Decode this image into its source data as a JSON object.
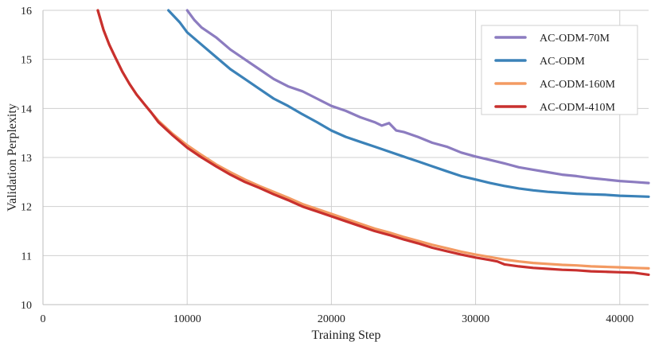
{
  "chart_data": {
    "type": "line",
    "title": "",
    "xlabel": "Training Step",
    "ylabel": "Validation Perplexity",
    "xlim": [
      0,
      42000
    ],
    "ylim": [
      10,
      16
    ],
    "xticks": [
      0,
      10000,
      20000,
      30000,
      40000
    ],
    "xtick_labels": [
      "0",
      "10000",
      "20000",
      "30000",
      "40000"
    ],
    "yticks": [
      10,
      11,
      12,
      13,
      14,
      15,
      16
    ],
    "ytick_labels": [
      "10",
      "11",
      "12",
      "13",
      "14",
      "15",
      "16"
    ],
    "grid": true,
    "legend_position": "top-right",
    "series": [
      {
        "name": "AC-ODM-70M",
        "color": "#8c7cc0",
        "points": [
          [
            10000,
            16.0
          ],
          [
            10500,
            15.8
          ],
          [
            11000,
            15.65
          ],
          [
            12000,
            15.45
          ],
          [
            13000,
            15.2
          ],
          [
            14000,
            15.0
          ],
          [
            15000,
            14.8
          ],
          [
            16000,
            14.6
          ],
          [
            17000,
            14.45
          ],
          [
            18000,
            14.35
          ],
          [
            19000,
            14.2
          ],
          [
            20000,
            14.05
          ],
          [
            21000,
            13.95
          ],
          [
            22000,
            13.82
          ],
          [
            23000,
            13.72
          ],
          [
            23500,
            13.65
          ],
          [
            24000,
            13.7
          ],
          [
            24500,
            13.55
          ],
          [
            25000,
            13.52
          ],
          [
            26000,
            13.42
          ],
          [
            27000,
            13.3
          ],
          [
            28000,
            13.22
          ],
          [
            29000,
            13.1
          ],
          [
            30000,
            13.02
          ],
          [
            31000,
            12.95
          ],
          [
            32000,
            12.88
          ],
          [
            33000,
            12.8
          ],
          [
            34000,
            12.75
          ],
          [
            35000,
            12.7
          ],
          [
            36000,
            12.65
          ],
          [
            37000,
            12.62
          ],
          [
            38000,
            12.58
          ],
          [
            39000,
            12.55
          ],
          [
            40000,
            12.52
          ],
          [
            41000,
            12.5
          ],
          [
            42000,
            12.48
          ]
        ]
      },
      {
        "name": "AC-ODM",
        "color": "#3b82b8",
        "points": [
          [
            8700,
            16.0
          ],
          [
            9500,
            15.75
          ],
          [
            10000,
            15.55
          ],
          [
            11000,
            15.3
          ],
          [
            12000,
            15.05
          ],
          [
            13000,
            14.8
          ],
          [
            14000,
            14.6
          ],
          [
            15000,
            14.4
          ],
          [
            16000,
            14.2
          ],
          [
            17000,
            14.05
          ],
          [
            18000,
            13.88
          ],
          [
            19000,
            13.72
          ],
          [
            20000,
            13.55
          ],
          [
            21000,
            13.42
          ],
          [
            22000,
            13.32
          ],
          [
            23000,
            13.22
          ],
          [
            24000,
            13.12
          ],
          [
            25000,
            13.02
          ],
          [
            26000,
            12.92
          ],
          [
            27000,
            12.82
          ],
          [
            28000,
            12.72
          ],
          [
            29000,
            12.62
          ],
          [
            30000,
            12.55
          ],
          [
            31000,
            12.48
          ],
          [
            32000,
            12.42
          ],
          [
            33000,
            12.37
          ],
          [
            34000,
            12.33
          ],
          [
            35000,
            12.3
          ],
          [
            36000,
            12.28
          ],
          [
            37000,
            12.26
          ],
          [
            38000,
            12.25
          ],
          [
            39000,
            12.24
          ],
          [
            40000,
            12.22
          ],
          [
            41000,
            12.21
          ],
          [
            42000,
            12.2
          ]
        ]
      },
      {
        "name": "AC-ODM-160M",
        "color": "#f39a62",
        "points": [
          [
            3800,
            16.0
          ],
          [
            4200,
            15.6
          ],
          [
            4600,
            15.3
          ],
          [
            5000,
            15.05
          ],
          [
            5500,
            14.75
          ],
          [
            6000,
            14.5
          ],
          [
            6500,
            14.28
          ],
          [
            7000,
            14.1
          ],
          [
            7500,
            13.92
          ],
          [
            8000,
            13.75
          ],
          [
            9000,
            13.48
          ],
          [
            10000,
            13.25
          ],
          [
            11000,
            13.05
          ],
          [
            12000,
            12.86
          ],
          [
            13000,
            12.7
          ],
          [
            14000,
            12.55
          ],
          [
            15000,
            12.42
          ],
          [
            16000,
            12.3
          ],
          [
            17000,
            12.18
          ],
          [
            18000,
            12.05
          ],
          [
            19000,
            11.95
          ],
          [
            20000,
            11.85
          ],
          [
            21000,
            11.75
          ],
          [
            22000,
            11.65
          ],
          [
            23000,
            11.55
          ],
          [
            24000,
            11.47
          ],
          [
            25000,
            11.38
          ],
          [
            26000,
            11.3
          ],
          [
            27000,
            11.22
          ],
          [
            28000,
            11.15
          ],
          [
            29000,
            11.08
          ],
          [
            30000,
            11.02
          ],
          [
            31000,
            10.97
          ],
          [
            32000,
            10.92
          ],
          [
            33000,
            10.88
          ],
          [
            34000,
            10.85
          ],
          [
            35000,
            10.83
          ],
          [
            36000,
            10.81
          ],
          [
            37000,
            10.8
          ],
          [
            38000,
            10.78
          ],
          [
            39000,
            10.77
          ],
          [
            40000,
            10.76
          ],
          [
            41000,
            10.75
          ],
          [
            42000,
            10.74
          ]
        ]
      },
      {
        "name": "AC-ODM-410M",
        "color": "#c8302e",
        "points": [
          [
            3800,
            16.0
          ],
          [
            4200,
            15.6
          ],
          [
            4600,
            15.3
          ],
          [
            5000,
            15.05
          ],
          [
            5500,
            14.75
          ],
          [
            6000,
            14.5
          ],
          [
            6500,
            14.28
          ],
          [
            7000,
            14.1
          ],
          [
            7500,
            13.92
          ],
          [
            8000,
            13.72
          ],
          [
            9000,
            13.45
          ],
          [
            10000,
            13.2
          ],
          [
            11000,
            13.0
          ],
          [
            12000,
            12.82
          ],
          [
            13000,
            12.65
          ],
          [
            14000,
            12.5
          ],
          [
            15000,
            12.38
          ],
          [
            16000,
            12.25
          ],
          [
            17000,
            12.13
          ],
          [
            18000,
            12.0
          ],
          [
            19000,
            11.9
          ],
          [
            20000,
            11.8
          ],
          [
            21000,
            11.7
          ],
          [
            22000,
            11.6
          ],
          [
            23000,
            11.5
          ],
          [
            24000,
            11.42
          ],
          [
            25000,
            11.33
          ],
          [
            26000,
            11.25
          ],
          [
            27000,
            11.16
          ],
          [
            28000,
            11.09
          ],
          [
            29000,
            11.02
          ],
          [
            30000,
            10.96
          ],
          [
            31000,
            10.91
          ],
          [
            31500,
            10.88
          ],
          [
            32000,
            10.82
          ],
          [
            33000,
            10.78
          ],
          [
            34000,
            10.75
          ],
          [
            35000,
            10.73
          ],
          [
            36000,
            10.71
          ],
          [
            37000,
            10.7
          ],
          [
            38000,
            10.68
          ],
          [
            39000,
            10.67
          ],
          [
            40000,
            10.66
          ],
          [
            41000,
            10.65
          ],
          [
            42000,
            10.61
          ]
        ]
      }
    ]
  }
}
